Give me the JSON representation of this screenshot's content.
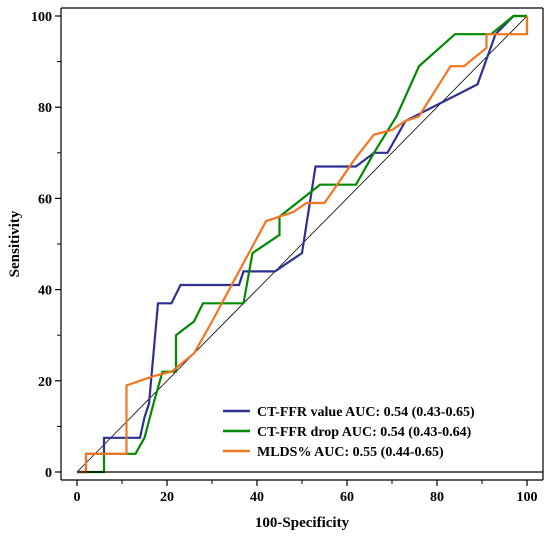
{
  "chart_data": {
    "type": "line",
    "xlabel": "100-Specificity",
    "ylabel": "Sensitivity",
    "xlim": [
      0,
      100
    ],
    "ylim": [
      0,
      100
    ],
    "xticks": [
      "0",
      "20",
      "40",
      "60",
      "80",
      "100"
    ],
    "yticks": [
      "0",
      "20",
      "40",
      "60",
      "80",
      "100"
    ],
    "grid": false,
    "legend_position": "bottom-right",
    "reference_line": {
      "from": [
        0,
        0
      ],
      "to": [
        100,
        100
      ],
      "color": "#000000"
    },
    "series": [
      {
        "name": "CT-FFR value AUC: 0.54 (0.43-0.65)",
        "color": "#2e3192",
        "points": [
          [
            0,
            0
          ],
          [
            2,
            0
          ],
          [
            2,
            4
          ],
          [
            6,
            4
          ],
          [
            6,
            7.5
          ],
          [
            14,
            7.5
          ],
          [
            15,
            12
          ],
          [
            16,
            15
          ],
          [
            18,
            37
          ],
          [
            21,
            37
          ],
          [
            23,
            41
          ],
          [
            36,
            41
          ],
          [
            37,
            44
          ],
          [
            44,
            44
          ],
          [
            47,
            46
          ],
          [
            50,
            48
          ],
          [
            53,
            67
          ],
          [
            62,
            67
          ],
          [
            66,
            70
          ],
          [
            69,
            70
          ],
          [
            73,
            77
          ],
          [
            77,
            79
          ],
          [
            81,
            81
          ],
          [
            85,
            83
          ],
          [
            89,
            85
          ],
          [
            93,
            96
          ],
          [
            97,
            100
          ],
          [
            100,
            100
          ]
        ]
      },
      {
        "name": "CT-FFR drop AUC: 0.54 (0.43-0.64)",
        "color": "#008a00",
        "points": [
          [
            0,
            0
          ],
          [
            6,
            0
          ],
          [
            6,
            4
          ],
          [
            13,
            4
          ],
          [
            15,
            7.5
          ],
          [
            17,
            15
          ],
          [
            19,
            22
          ],
          [
            22,
            22
          ],
          [
            22,
            30
          ],
          [
            26,
            33
          ],
          [
            28,
            37
          ],
          [
            37,
            37
          ],
          [
            39,
            48
          ],
          [
            45,
            52
          ],
          [
            45,
            56
          ],
          [
            54,
            63
          ],
          [
            62,
            63
          ],
          [
            66,
            70
          ],
          [
            71,
            78
          ],
          [
            76,
            89
          ],
          [
            84,
            96
          ],
          [
            92,
            96
          ],
          [
            97,
            100
          ],
          [
            100,
            100
          ]
        ]
      },
      {
        "name": "MLDS% AUC: 0.55 (0.44-0.65)",
        "color": "#f57420",
        "points": [
          [
            0,
            0
          ],
          [
            2,
            0
          ],
          [
            2,
            4
          ],
          [
            11,
            4
          ],
          [
            11,
            19
          ],
          [
            17,
            21
          ],
          [
            21,
            22
          ],
          [
            26,
            26
          ],
          [
            30,
            33
          ],
          [
            36,
            44
          ],
          [
            42,
            55
          ],
          [
            48,
            57
          ],
          [
            51,
            59
          ],
          [
            55,
            59
          ],
          [
            62,
            69
          ],
          [
            66,
            74
          ],
          [
            70,
            75
          ],
          [
            73,
            77
          ],
          [
            76,
            78
          ],
          [
            83,
            89
          ],
          [
            86,
            89
          ],
          [
            91,
            93
          ],
          [
            91,
            96
          ],
          [
            100,
            96
          ],
          [
            100,
            100
          ]
        ]
      }
    ]
  }
}
